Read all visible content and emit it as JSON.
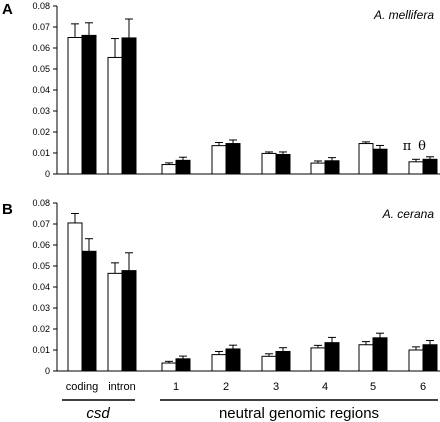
{
  "chart_data": [
    {
      "type": "bar",
      "panel": "A",
      "species": "A. mellifera",
      "categories": [
        "coding",
        "intron",
        "1",
        "2",
        "3",
        "4",
        "5",
        "6"
      ],
      "series": [
        {
          "name": "π",
          "color": "#ffffff",
          "values": [
            0.065,
            0.0555,
            0.0045,
            0.0135,
            0.0098,
            0.0052,
            0.0145,
            0.0058
          ],
          "errors": [
            0.0065,
            0.009,
            0.0008,
            0.0015,
            0.0007,
            0.001,
            0.0008,
            0.0012
          ]
        },
        {
          "name": "θ",
          "color": "#000000",
          "values": [
            0.066,
            0.0648,
            0.0065,
            0.0145,
            0.0093,
            0.0063,
            0.0118,
            0.007
          ],
          "errors": [
            0.006,
            0.009,
            0.0015,
            0.0017,
            0.0012,
            0.0015,
            0.0018,
            0.0012
          ]
        }
      ],
      "ylim": [
        0,
        0.08
      ],
      "yticks": [
        "0",
        "0.01",
        "0.02",
        "0.03",
        "0.04",
        "0.05",
        "0.06",
        "0.07",
        "0.08"
      ],
      "xlabel": "",
      "ylabel": "",
      "legend": {
        "placement": "top-right, above last group",
        "labels": [
          "π",
          "θ"
        ]
      }
    },
    {
      "type": "bar",
      "panel": "B",
      "species": "A. cerana",
      "categories": [
        "coding",
        "intron",
        "1",
        "2",
        "3",
        "4",
        "5",
        "6"
      ],
      "series": [
        {
          "name": "π",
          "color": "#ffffff",
          "values": [
            0.0705,
            0.0465,
            0.0038,
            0.0078,
            0.007,
            0.011,
            0.0125,
            0.01
          ],
          "errors": [
            0.0045,
            0.005,
            0.0008,
            0.0015,
            0.0012,
            0.0012,
            0.0015,
            0.0015
          ]
        },
        {
          "name": "θ",
          "color": "#000000",
          "values": [
            0.057,
            0.0478,
            0.0058,
            0.0105,
            0.0093,
            0.0135,
            0.0158,
            0.0125
          ],
          "errors": [
            0.006,
            0.0085,
            0.0013,
            0.0018,
            0.0018,
            0.0025,
            0.0022,
            0.002
          ]
        }
      ],
      "ylim": [
        0,
        0.08
      ],
      "yticks": [
        "0",
        "0.01",
        "0.02",
        "0.03",
        "0.04",
        "0.05",
        "0.06",
        "0.07",
        "0.08"
      ],
      "xlabel": "",
      "ylabel": ""
    }
  ],
  "groups": {
    "csd": "csd",
    "neutral": "neutral genomic regions"
  },
  "colors": {
    "axis": "#000000",
    "pi_fill": "#ffffff",
    "theta_fill": "#000000"
  }
}
